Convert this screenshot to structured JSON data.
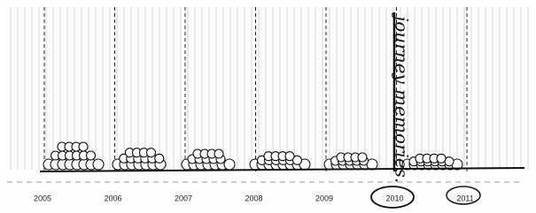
{
  "timeline": {
    "years": [
      "2005",
      "2006",
      "2007",
      "2008",
      "2009",
      "2010",
      "2011"
    ],
    "annotation": "journey memories."
  }
}
